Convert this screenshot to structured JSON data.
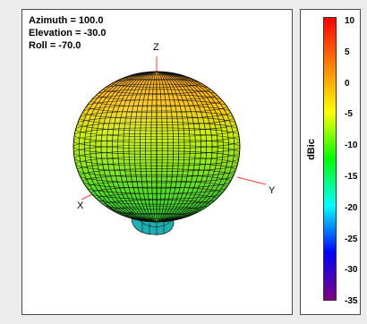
{
  "view": {
    "azimuth": "Azimuth = 100.0",
    "elevation": "Elevation = -30.0",
    "roll": "Roll = -70.0"
  },
  "axes": {
    "x": "X",
    "y": "Y",
    "z": "Z",
    "axis_color": "#ff3b3b"
  },
  "legend": {
    "unit": "dBic",
    "ticks": [
      "10",
      "5",
      "0",
      "-5",
      "-10",
      "-15",
      "-20",
      "-25",
      "-30",
      "-35"
    ],
    "scale_colors": [
      "#ff0000",
      "#ff8000",
      "#ffff00",
      "#00ff00",
      "#00ffff",
      "#0000ff",
      "#800080"
    ]
  },
  "pattern": {
    "top_color": "#ffa000",
    "mid_color": "#c8f000",
    "bottom_color": "#20d020",
    "lobe_color": "#20b0b0",
    "mesh_color": "#000000"
  }
}
